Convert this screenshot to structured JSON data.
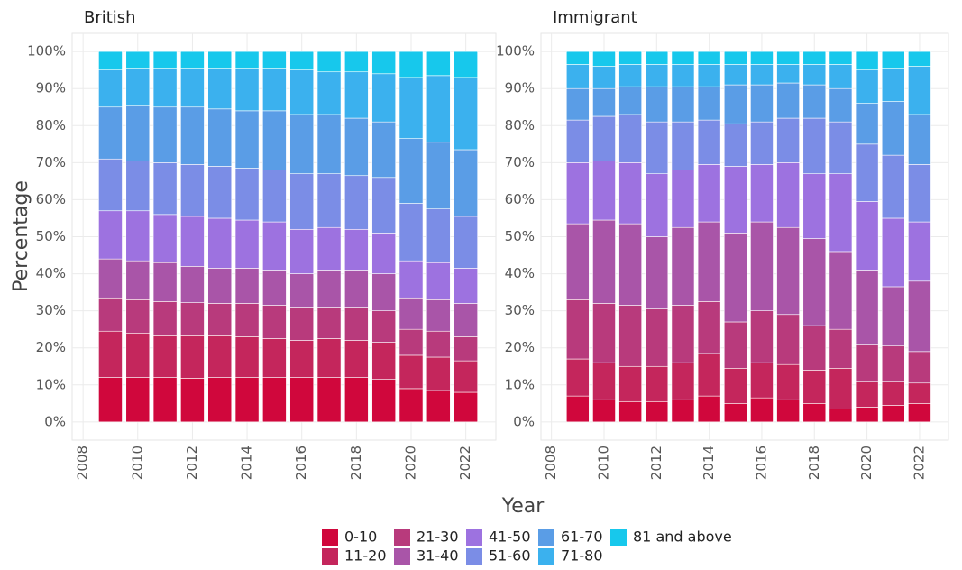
{
  "chart_data": {
    "type": "bar",
    "stacked": true,
    "x_label": "Year",
    "y_label": "Percentage",
    "xlim": [
      2007.6,
      2023.1
    ],
    "xticks": [
      2008,
      2010,
      2012,
      2014,
      2016,
      2018,
      2020,
      2022
    ],
    "ylim": [
      -4.9,
      104.9
    ],
    "yticks": [
      {
        "value": 0,
        "label": "0%"
      },
      {
        "value": 10,
        "label": "10%"
      },
      {
        "value": 20,
        "label": "20%"
      },
      {
        "value": 30,
        "label": "30%"
      },
      {
        "value": 40,
        "label": "40%"
      },
      {
        "value": 50,
        "label": "50%"
      },
      {
        "value": 60,
        "label": "60%"
      },
      {
        "value": 70,
        "label": "70%"
      },
      {
        "value": 80,
        "label": "80%"
      },
      {
        "value": 90,
        "label": "90%"
      },
      {
        "value": 100,
        "label": "100%"
      }
    ],
    "grid": true,
    "legend": "bottom",
    "series": [
      {
        "name": "0-10",
        "color": "#d0073c"
      },
      {
        "name": "11-20",
        "color": "#c4265c"
      },
      {
        "name": "21-30",
        "color": "#b83a7c"
      },
      {
        "name": "31-40",
        "color": "#a955a8"
      },
      {
        "name": "41-50",
        "color": "#9d72e0"
      },
      {
        "name": "51-60",
        "color": "#7b8de6"
      },
      {
        "name": "61-70",
        "color": "#5a9de6"
      },
      {
        "name": "71-80",
        "color": "#3bb1ee"
      },
      {
        "name": "81 and above",
        "color": "#17c8ec"
      }
    ],
    "panels": [
      {
        "title": "British",
        "x": [
          2009,
          2010,
          2011,
          2012,
          2013,
          2014,
          2015,
          2016,
          2017,
          2018,
          2019,
          2020,
          2021,
          2022
        ],
        "values": [
          [
            12,
            12,
            12,
            11.8,
            12,
            12,
            12,
            12,
            12,
            12,
            11.5,
            9,
            8.5,
            8
          ],
          [
            12.5,
            12,
            11.5,
            11.7,
            11.5,
            11,
            10.5,
            10,
            10.5,
            10,
            10,
            9,
            9,
            8.5
          ],
          [
            9,
            9,
            9,
            8.7,
            8.5,
            9,
            9,
            9,
            8.5,
            9,
            8.5,
            7,
            7,
            6.5
          ],
          [
            10.5,
            10.5,
            10.5,
            9.8,
            9.5,
            9.5,
            9.5,
            9,
            10,
            10,
            10,
            8.5,
            8.5,
            9
          ],
          [
            13,
            13.5,
            13,
            13.5,
            13.5,
            13,
            13,
            12,
            11.5,
            11,
            11,
            10,
            10,
            9.5
          ],
          [
            14,
            13.5,
            14,
            14,
            14,
            14,
            14,
            15,
            14.5,
            14.5,
            15,
            15.5,
            14.5,
            14
          ],
          [
            14,
            15,
            15,
            15.5,
            15.5,
            15.5,
            16,
            16,
            16,
            15.5,
            15,
            17.5,
            18,
            18
          ],
          [
            10,
            10,
            10.5,
            10.5,
            11,
            11.5,
            11.5,
            12,
            11.5,
            12.5,
            13,
            16.5,
            18,
            19.5
          ],
          [
            5,
            4.5,
            4.5,
            4.5,
            4.5,
            4.5,
            4.5,
            5,
            5.5,
            5.5,
            6,
            7,
            6.5,
            7
          ]
        ]
      },
      {
        "title": "Immigrant",
        "x": [
          2009,
          2010,
          2011,
          2012,
          2013,
          2014,
          2015,
          2016,
          2017,
          2018,
          2019,
          2020,
          2021,
          2022
        ],
        "values": [
          [
            7,
            6,
            5.5,
            5.5,
            6,
            7,
            5,
            6.5,
            6,
            5,
            3.5,
            4,
            4.5,
            5
          ],
          [
            10,
            10,
            9.5,
            9.5,
            10,
            11.5,
            9.5,
            9.5,
            9.5,
            9,
            11,
            7,
            6.5,
            5.5
          ],
          [
            16,
            16,
            16.5,
            15.5,
            15.5,
            14,
            12.5,
            14,
            13.5,
            12,
            10.5,
            10,
            9.5,
            8.5
          ],
          [
            20.5,
            22.5,
            22,
            19.5,
            21,
            21.5,
            24,
            24,
            23.5,
            23.5,
            21,
            20,
            16,
            19
          ],
          [
            16.5,
            16,
            16.5,
            17,
            15.5,
            15.5,
            18,
            15.5,
            17.5,
            17.5,
            21,
            18.5,
            18.5,
            16
          ],
          [
            11.5,
            12,
            13,
            14,
            13,
            12,
            11.5,
            11.5,
            12,
            15,
            14,
            15.5,
            17,
            15.5
          ],
          [
            8.5,
            7.5,
            7.5,
            9.5,
            9.5,
            9,
            10.5,
            10,
            9.5,
            9,
            9,
            11,
            14.5,
            13.5
          ],
          [
            6.5,
            6,
            6,
            6,
            6,
            6,
            5.5,
            5.5,
            5,
            5.5,
            6.5,
            9,
            9,
            13
          ],
          [
            3.5,
            4,
            3.5,
            3.5,
            3.5,
            3.5,
            3.5,
            3.5,
            3.5,
            3.5,
            3.5,
            5,
            4.5,
            4
          ]
        ]
      }
    ]
  }
}
